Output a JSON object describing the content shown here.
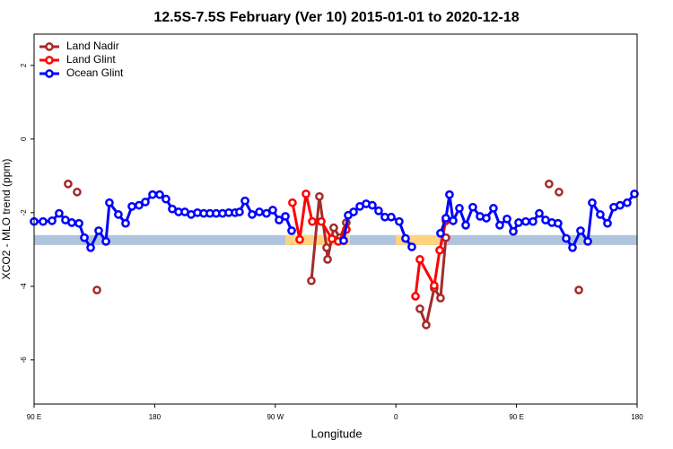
{
  "chart_data": {
    "type": "line",
    "title": "12.5S-7.5S February (Ver 10)   2015-01-01 to 2020-12-18",
    "xlabel": "Longitude",
    "ylabel": "XCO2 - MLO trend (ppm)",
    "xlim": [
      90,
      540
    ],
    "xticks": [
      {
        "value": 90,
        "label": "90 E"
      },
      {
        "value": 180,
        "label": "180"
      },
      {
        "value": 270,
        "label": "90 W"
      },
      {
        "value": 360,
        "label": "0"
      },
      {
        "value": 450,
        "label": "90 E"
      },
      {
        "value": 540,
        "label": "180"
      }
    ],
    "ylim": [
      -7.2,
      2.85
    ],
    "yticks": [
      2,
      0,
      -2,
      -4,
      -6
    ],
    "legend": "top-left",
    "band": {
      "ylim": [
        -2.88,
        -2.61
      ],
      "color": "#b0c4de"
    },
    "highlights": {
      "color": "#ffd27f",
      "ranges": [
        [
          277.5,
          325.7
        ],
        [
          359.9,
          392.7
        ]
      ]
    },
    "series": [
      {
        "name": "Land Nadir",
        "color": "#a52a2a",
        "x": [
          115.4,
          null,
          122.1,
          null,
          136.9,
          null,
          296.9,
          302.9,
          308.3,
          309.0,
          313.6,
          318.3,
          323.0,
          null,
          377.9,
          382.6,
          388.6,
          393.3,
          397.3,
          null,
          474.3,
          null,
          481.7,
          null,
          496.5
        ],
        "values": [
          -1.22,
          null,
          -1.44,
          null,
          -4.1,
          null,
          -3.85,
          -1.56,
          -2.95,
          -3.27,
          -2.41,
          -2.68,
          -2.27,
          null,
          -4.61,
          -5.05,
          -4.05,
          -4.32,
          -2.68,
          null,
          -1.22,
          null,
          -1.44,
          null,
          -4.1
        ]
      },
      {
        "name": "Land Glint",
        "color": "#ff0000",
        "x": [
          282.8,
          288.2,
          292.9,
          297.6,
          304.3,
          312.3,
          317.0,
          323.0,
          null,
          374.6,
          377.9,
          388.6,
          392.7,
          397.3
        ],
        "values": [
          -1.73,
          -2.73,
          -1.49,
          -2.24,
          -2.24,
          -2.71,
          -2.78,
          -2.46,
          null,
          -4.27,
          -3.27,
          -3.98,
          -3.02,
          -2.22
        ]
      },
      {
        "name": "Ocean Glint",
        "color": "#0000ff",
        "x": [
          90,
          96.7,
          103.4,
          108.7,
          113.4,
          118.1,
          123.5,
          127.5,
          132.2,
          138.2,
          143.6,
          146.2,
          152.9,
          158.3,
          163.0,
          168.3,
          173.0,
          178.4,
          183.7,
          188.4,
          193.1,
          197.8,
          202.5,
          207.2,
          211.9,
          216.6,
          221.2,
          225.9,
          230.6,
          235.3,
          240.0,
          243.3,
          247.4,
          252.7,
          258.1,
          263.4,
          268.1,
          272.8,
          277.5,
          282.2,
          null,
          321.0,
          324.4,
          328.4,
          333.1,
          337.8,
          342.4,
          347.1,
          351.8,
          356.5,
          362.5,
          367.2,
          371.9,
          null,
          393.3,
          397.3,
          400.0,
          402.7,
          407.4,
          412.1,
          417.4,
          422.8,
          427.5,
          432.8,
          437.5,
          442.9,
          447.6,
          451.6,
          456.9,
          462.3,
          467.0,
          471.7,
          476.4,
          481.0,
          487.1,
          491.8,
          497.8,
          503.2,
          506.5,
          512.5,
          517.9,
          522.6,
          527.3,
          532.6,
          538.0
        ],
        "values": [
          -2.24,
          -2.24,
          -2.22,
          -2.02,
          -2.2,
          -2.27,
          -2.29,
          -2.68,
          -2.95,
          -2.49,
          -2.78,
          -1.73,
          -2.05,
          -2.29,
          -1.83,
          -1.8,
          -1.71,
          -1.51,
          -1.51,
          -1.63,
          -1.9,
          -1.98,
          -1.98,
          -2.05,
          -2.0,
          -2.02,
          -2.02,
          -2.02,
          -2.02,
          -2.0,
          -2.0,
          -1.98,
          -1.68,
          -2.05,
          -1.98,
          -2.02,
          -1.93,
          -2.2,
          -2.1,
          -2.49,
          null,
          -2.76,
          -2.07,
          -1.98,
          -1.83,
          -1.76,
          -1.8,
          -1.95,
          -2.12,
          -2.12,
          -2.24,
          -2.7,
          -2.93,
          null,
          -2.56,
          -2.15,
          -1.51,
          -2.22,
          -1.88,
          -2.34,
          -1.85,
          -2.1,
          -2.15,
          -1.88,
          -2.34,
          -2.17,
          -2.51,
          -2.27,
          -2.24,
          -2.24,
          -2.02,
          -2.2,
          -2.27,
          -2.29,
          -2.7,
          -2.95,
          -2.49,
          -2.78,
          -1.73,
          -2.05,
          -2.29,
          -1.85,
          -1.8,
          -1.73,
          -1.49
        ]
      }
    ]
  }
}
